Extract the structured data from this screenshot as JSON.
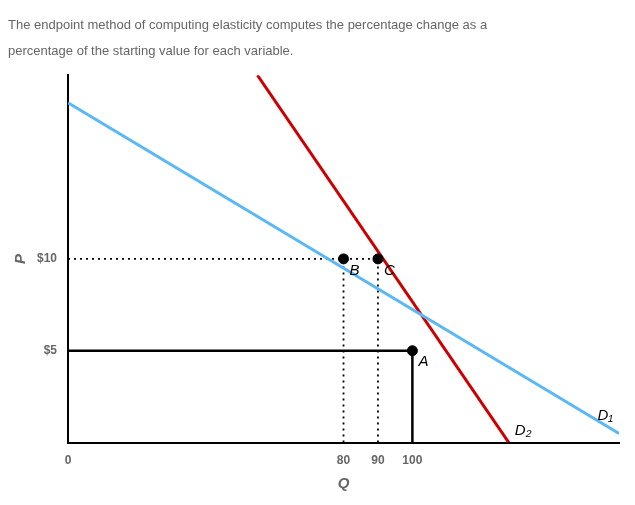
{
  "chart_data": {
    "type": "line",
    "title": "The endpoint method of computing elasticity computes the percentage change as a",
    "subtitle": "percentage of the starting value for each variable.",
    "x_label": "Q",
    "y_label": "P",
    "xlim": [
      0,
      160
    ],
    "ylim": [
      0,
      20
    ],
    "xticks": [
      0,
      80,
      90,
      100
    ],
    "yticks": [
      {
        "value": 5,
        "label": "$5"
      },
      {
        "value": 10,
        "label": "$10"
      }
    ],
    "grid": false,
    "series": [
      {
        "name": "D₁",
        "color": "#5BB8F5",
        "x": [
          0,
          160
        ],
        "values": [
          18.5,
          0.5
        ],
        "line_style": "solid"
      },
      {
        "name": "D₂",
        "color": "#CC0000",
        "x": [
          55,
          128
        ],
        "values": [
          20,
          0
        ],
        "line_style": "solid"
      },
      {
        "color": "#000000",
        "x": [
          0,
          100,
          100
        ],
        "values": [
          5,
          5,
          0
        ],
        "line_style": "solid"
      },
      {
        "color": "#000000",
        "x": [
          0,
          90
        ],
        "values": [
          10,
          10
        ],
        "line_style": "dotted"
      },
      {
        "color": "#000000",
        "x": [
          80,
          80
        ],
        "values": [
          0,
          10
        ],
        "line_style": "dotted"
      },
      {
        "color": "#000000",
        "x": [
          90,
          90
        ],
        "values": [
          0,
          10
        ],
        "line_style": "dotted"
      },
      {
        "type": "scatter",
        "color": "#000000",
        "marker": "circle",
        "x": [
          100,
          80,
          90
        ],
        "values": [
          5,
          10,
          10
        ]
      }
    ],
    "annotations": [
      {
        "text": "A",
        "x": 100,
        "y": 5
      },
      {
        "text": "B",
        "x": 80,
        "y": 10
      },
      {
        "text": "C",
        "x": 90,
        "y": 10
      }
    ]
  }
}
